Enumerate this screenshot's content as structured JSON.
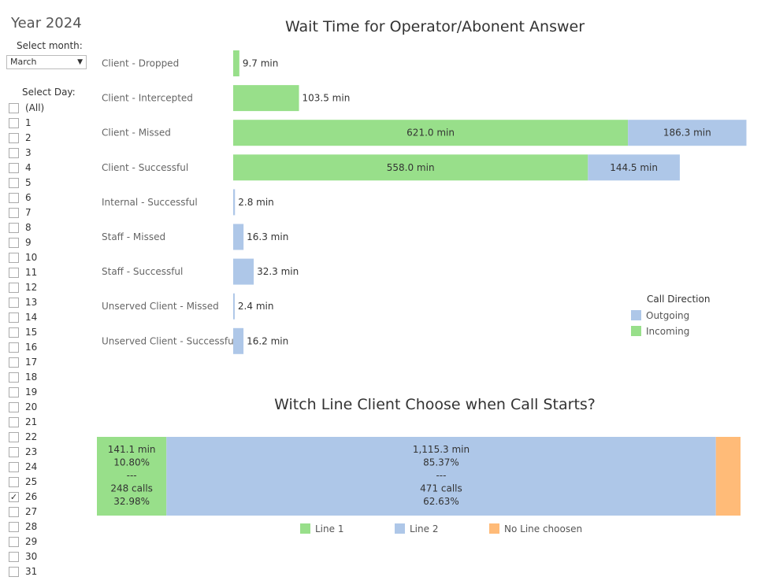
{
  "sidebar": {
    "year_title": "Year 2024",
    "month_label": "Select month:",
    "month_value": "March",
    "day_label": "Select Day:",
    "days": [
      "(All)",
      "1",
      "2",
      "3",
      "4",
      "5",
      "6",
      "7",
      "8",
      "9",
      "10",
      "11",
      "12",
      "13",
      "14",
      "15",
      "16",
      "17",
      "18",
      "19",
      "20",
      "21",
      "22",
      "23",
      "24",
      "25",
      "26",
      "27",
      "28",
      "29",
      "30",
      "31"
    ],
    "checked_day": "26"
  },
  "chart_data": [
    {
      "type": "bar",
      "orientation": "horizontal",
      "stacked": true,
      "title": "Wait Time for Operator/Abonent Answer",
      "categories": [
        "Client - Dropped",
        "Client - Intercepted",
        "Client - Missed",
        "Client - Successful",
        "Internal - Successful",
        "Staff - Missed",
        "Staff - Successful",
        "Unserved Client - Missed",
        "Unserved Client - Successful"
      ],
      "series": [
        {
          "name": "Incoming",
          "color": "#98df8a",
          "values": [
            9.7,
            103.5,
            621.0,
            558.0,
            null,
            null,
            null,
            null,
            null
          ]
        },
        {
          "name": "Outgoing",
          "color": "#aec7e8",
          "values": [
            null,
            null,
            186.3,
            144.5,
            2.8,
            16.3,
            32.3,
            2.4,
            16.2
          ]
        }
      ],
      "data_labels": [
        [
          "9.7 min"
        ],
        [
          "103.5 min"
        ],
        [
          "621.0 min",
          "186.3 min"
        ],
        [
          "558.0 min",
          "144.5 min"
        ],
        [
          "2.8 min"
        ],
        [
          "16.3 min"
        ],
        [
          "32.3 min"
        ],
        [
          "2.4 min"
        ],
        [
          "16.2 min"
        ]
      ],
      "legend": {
        "title": "Call Direction",
        "position": "right",
        "entries": [
          "Outgoing",
          "Incoming"
        ]
      },
      "grid": false
    },
    {
      "type": "bar",
      "orientation": "horizontal",
      "stacked": true,
      "normalized": true,
      "title": "Witch Line Client Choose when Call Starts?",
      "series": [
        {
          "name": "Line 1",
          "color": "#98df8a",
          "minutes": 141.1,
          "minutes_share": 10.8,
          "calls": 248,
          "calls_share": 32.98,
          "label_lines": [
            "141.1 min",
            "10.80%",
            "---",
            "248 calls",
            "32.98%"
          ]
        },
        {
          "name": "Line 2",
          "color": "#aec7e8",
          "minutes": 1115.3,
          "minutes_share": 85.37,
          "calls": 471,
          "calls_share": 62.63,
          "label_lines": [
            "1,115.3 min",
            "85.37%",
            "---",
            "471 calls",
            "62.63%"
          ]
        },
        {
          "name": "No Line choosen",
          "color": "#ffbb78",
          "minutes_share": 3.83,
          "label_lines": []
        }
      ],
      "legend": {
        "position": "bottom",
        "entries": [
          "Line 1",
          "Line 2",
          "No Line choosen"
        ]
      },
      "grid": false
    }
  ]
}
